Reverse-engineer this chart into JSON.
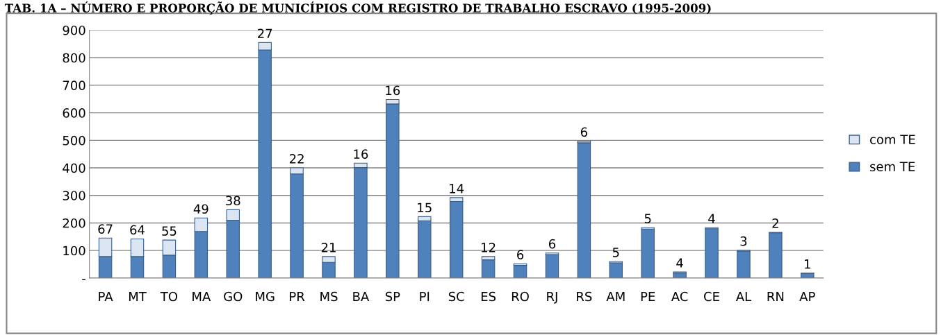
{
  "chart_data": {
    "type": "bar",
    "stacked": true,
    "title": "TAB. 1A – NÚMERO E PROPORÇÃO DE MUNICÍPIOS COM REGISTRO DE TRABALHO ESCRAVO (1995-2009)",
    "categories": [
      "PA",
      "MT",
      "TO",
      "MA",
      "GO",
      "MG",
      "PR",
      "MS",
      "BA",
      "SP",
      "PI",
      "SC",
      "ES",
      "RO",
      "RJ",
      "RS",
      "AM",
      "PE",
      "AC",
      "CE",
      "AL",
      "RN",
      "AP"
    ],
    "series": [
      {
        "name": "sem TE",
        "color": "#4f81bd",
        "values": [
          78,
          78,
          83,
          169,
          210,
          828,
          378,
          57,
          401,
          632,
          208,
          278,
          66,
          46,
          85,
          491,
          55,
          178,
          18,
          179,
          98,
          164,
          17
        ]
      },
      {
        "name": "com TE",
        "color": "#dce6f2",
        "values": [
          67,
          64,
          55,
          49,
          38,
          27,
          22,
          21,
          16,
          16,
          15,
          14,
          12,
          6,
          6,
          6,
          5,
          5,
          4,
          4,
          3,
          2,
          1
        ],
        "value_labels": [
          "67",
          "64",
          "55",
          "49",
          "38",
          "27",
          "22",
          "21",
          "16",
          "16",
          "15",
          "14",
          "12",
          "6",
          "6",
          "6",
          "5",
          "5",
          "4",
          "4",
          "3",
          "2",
          "1"
        ]
      }
    ],
    "ylim": [
      0,
      900
    ],
    "yticks": [
      {
        "value": 0,
        "label": "-"
      },
      100,
      200,
      300,
      400,
      500,
      600,
      700,
      800,
      900
    ],
    "grid": "y",
    "legend": "right"
  }
}
